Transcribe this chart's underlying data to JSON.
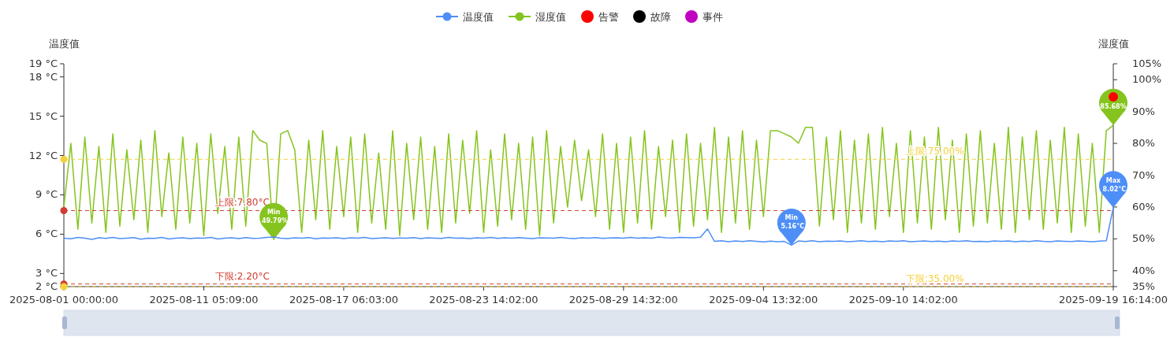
{
  "chart_data": {
    "type": "line",
    "legend": "top",
    "ylabel": "温度值",
    "y2label": "湿度值",
    "categories": [
      "2025-08-01 00:00:00",
      null,
      null,
      null,
      null,
      null,
      null,
      null,
      null,
      null,
      null,
      null,
      null,
      null,
      null,
      null,
      null,
      null,
      null,
      null,
      "2025-08-11 05:09:00",
      null,
      null,
      null,
      null,
      null,
      null,
      null,
      null,
      null,
      null,
      null,
      null,
      null,
      null,
      null,
      null,
      null,
      null,
      null,
      "2025-08-17 06:03:00",
      null,
      null,
      null,
      null,
      null,
      null,
      null,
      null,
      null,
      null,
      null,
      null,
      null,
      null,
      null,
      null,
      null,
      null,
      null,
      "2025-08-23 14:02:00",
      null,
      null,
      null,
      null,
      null,
      null,
      null,
      null,
      null,
      null,
      null,
      null,
      null,
      null,
      null,
      null,
      null,
      null,
      null,
      "2025-08-29 14:32:00",
      null,
      null,
      null,
      null,
      null,
      null,
      null,
      null,
      null,
      null,
      null,
      null,
      null,
      null,
      null,
      null,
      null,
      null,
      null,
      "2025-09-04 13:32:00",
      null,
      null,
      null,
      null,
      null,
      null,
      null,
      null,
      null,
      null,
      null,
      null,
      null,
      null,
      null,
      null,
      null,
      null,
      null,
      "2025-09-10 14:02:00",
      null,
      null,
      null,
      null,
      null,
      null,
      null,
      null,
      null,
      null,
      null,
      null,
      null,
      null,
      null,
      null,
      null,
      null,
      null,
      null,
      null,
      null,
      null,
      null,
      null,
      null,
      null,
      null,
      null,
      "2025-09-19 16:14:00"
    ],
    "ylim": [
      2,
      19
    ],
    "yticks": [
      {
        "value": 2,
        "label": "2 °C"
      },
      {
        "value": 3,
        "label": "3 °C"
      },
      {
        "value": 6,
        "label": "6 °C"
      },
      {
        "value": 9,
        "label": "9 °C"
      },
      {
        "value": 12,
        "label": "12 °C"
      },
      {
        "value": 15,
        "label": "15 °C"
      },
      {
        "value": 18,
        "label": "18 °C"
      },
      {
        "value": 19,
        "label": "19 °C"
      }
    ],
    "y2lim": [
      35,
      105
    ],
    "y2ticks": [
      {
        "value": 35,
        "label": "35%"
      },
      {
        "value": 40,
        "label": "40%"
      },
      {
        "value": 50,
        "label": "50%"
      },
      {
        "value": 60,
        "label": "60%"
      },
      {
        "value": 70,
        "label": "70%"
      },
      {
        "value": 80,
        "label": "80%"
      },
      {
        "value": 90,
        "label": "90%"
      },
      {
        "value": 100,
        "label": "100%"
      },
      {
        "value": 105,
        "label": "105%"
      }
    ],
    "series": [
      {
        "name": "温度值",
        "color": "#4e8ef7",
        "values": [
          5.7,
          5.65,
          5.75,
          5.7,
          5.6,
          5.72,
          5.68,
          5.75,
          5.66,
          5.7,
          5.74,
          5.62,
          5.7,
          5.68,
          5.76,
          5.64,
          5.7,
          5.73,
          5.66,
          5.71,
          5.69,
          5.75,
          5.63,
          5.7,
          5.72,
          5.67,
          5.74,
          5.68,
          5.7,
          5.76,
          5.78,
          5.7,
          5.66,
          5.72,
          5.69,
          5.74,
          5.65,
          5.71,
          5.7,
          5.73,
          5.67,
          5.72,
          5.7,
          5.75,
          5.66,
          5.7,
          5.73,
          5.68,
          5.71,
          5.69,
          5.74,
          5.66,
          5.72,
          5.7,
          5.68,
          5.75,
          5.69,
          5.71,
          5.67,
          5.73,
          5.7,
          5.76,
          5.68,
          5.72,
          5.69,
          5.74,
          5.7,
          5.66,
          5.73,
          5.71,
          5.69,
          5.75,
          5.7,
          5.67,
          5.72,
          5.7,
          5.74,
          5.68,
          5.71,
          5.73,
          5.7,
          5.76,
          5.69,
          5.72,
          5.7,
          5.78,
          5.73,
          5.71,
          5.75,
          5.74,
          5.72,
          5.77,
          6.4,
          5.45,
          5.5,
          5.42,
          5.48,
          5.44,
          5.5,
          5.46,
          5.41,
          5.47,
          5.43,
          5.45,
          5.16,
          5.48,
          5.44,
          5.5,
          5.42,
          5.47,
          5.45,
          5.49,
          5.43,
          5.46,
          5.5,
          5.44,
          5.47,
          5.42,
          5.48,
          5.45,
          5.5,
          5.43,
          5.46,
          5.49,
          5.44,
          5.47,
          5.42,
          5.48,
          5.45,
          5.5,
          5.44,
          5.46,
          5.43,
          5.49,
          5.45,
          5.48,
          5.42,
          5.47,
          5.44,
          5.5,
          5.45,
          5.43,
          5.48,
          5.46,
          5.44,
          5.49,
          5.45,
          5.42,
          5.47,
          5.5,
          8.02
        ]
      },
      {
        "name": "湿度值",
        "color": "#85c41e",
        "axis": "y2",
        "values": [
          60,
          80,
          53,
          82,
          55,
          79,
          52,
          83,
          54,
          78,
          56,
          81,
          52,
          84,
          57,
          77,
          53,
          82,
          55,
          80,
          51,
          83,
          58,
          79,
          53,
          82,
          54,
          84,
          81,
          80,
          49.79,
          83,
          84,
          78,
          52,
          81,
          56,
          84,
          53,
          79,
          57,
          82,
          52,
          83,
          55,
          77,
          53,
          84,
          51,
          80,
          56,
          82,
          53,
          79,
          52,
          83,
          55,
          81,
          58,
          84,
          52,
          78,
          54,
          83,
          56,
          80,
          53,
          82,
          51,
          84,
          55,
          79,
          60,
          81,
          62,
          78,
          57,
          83,
          53,
          80,
          52,
          82,
          55,
          84,
          53,
          79,
          57,
          81,
          52,
          83,
          54,
          80,
          56,
          85,
          52,
          82,
          55,
          84,
          53,
          81,
          57,
          84,
          84,
          83,
          82,
          80,
          85,
          85,
          54,
          82,
          56,
          84,
          52,
          81,
          55,
          83,
          53,
          85,
          57,
          80,
          52,
          84,
          55,
          82,
          53,
          85,
          56,
          81,
          52,
          83,
          54,
          84,
          55,
          80,
          53,
          85,
          52,
          82,
          56,
          84,
          53,
          81,
          55,
          85,
          52,
          83,
          54,
          80,
          52,
          84,
          85.68
        ]
      },
      {
        "name": "告警",
        "type": "scatter",
        "marker": "circle",
        "color": "#ff0000",
        "axis": "y2",
        "values": [
          null,
          null,
          null,
          null,
          null,
          null,
          null,
          null,
          null,
          null,
          null,
          null,
          null,
          null,
          null,
          null,
          null,
          null,
          null,
          null,
          null,
          null,
          null,
          null,
          null,
          null,
          null,
          null,
          null,
          null,
          null,
          null,
          null,
          null,
          null,
          null,
          null,
          null,
          null,
          null,
          null,
          null,
          null,
          null,
          null,
          null,
          null,
          null,
          null,
          null,
          null,
          null,
          null,
          null,
          null,
          null,
          null,
          null,
          null,
          null,
          null,
          null,
          null,
          null,
          null,
          null,
          null,
          null,
          null,
          null,
          null,
          null,
          null,
          null,
          null,
          null,
          null,
          null,
          null,
          null,
          null,
          null,
          null,
          null,
          null,
          null,
          null,
          null,
          null,
          null,
          null,
          null,
          null,
          null,
          null,
          null,
          null,
          null,
          null,
          null,
          null,
          null,
          null,
          null,
          null,
          null,
          null,
          null,
          null,
          null,
          null,
          null,
          null,
          null,
          null,
          null,
          null,
          null,
          null,
          null,
          null,
          null,
          null,
          null,
          null,
          null,
          null,
          null,
          null,
          null,
          null,
          null,
          null,
          null,
          null,
          null,
          null,
          null,
          null,
          null,
          null,
          null,
          null,
          null,
          null,
          null,
          null,
          null,
          null,
          null,
          94.6
        ]
      },
      {
        "name": "故障",
        "type": "scatter",
        "marker": "circle",
        "color": "#000000",
        "axis": "y2",
        "values": [
          null,
          null,
          null,
          null,
          null,
          null,
          null,
          null,
          null,
          null,
          null,
          null,
          null,
          null,
          null,
          null,
          null,
          null,
          null,
          null,
          null,
          null,
          null,
          null,
          null,
          null,
          null,
          null,
          null,
          null,
          null,
          null,
          null,
          null,
          null,
          null,
          null,
          null,
          null,
          null,
          null,
          null,
          null,
          null,
          null,
          null,
          null,
          null,
          null,
          null,
          null,
          null,
          null,
          null,
          null,
          null,
          null,
          null,
          null,
          null,
          null,
          null,
          null,
          null,
          null,
          null,
          null,
          null,
          null,
          null,
          null,
          null,
          null,
          null,
          null,
          null,
          null,
          null,
          null,
          null,
          null,
          null,
          null,
          null,
          null,
          null,
          null,
          null,
          null,
          null,
          null,
          null,
          null,
          null,
          null,
          null,
          null,
          null,
          null,
          null,
          null,
          null,
          null,
          null,
          null,
          null,
          null,
          null,
          null,
          null,
          null,
          null,
          null,
          null,
          null,
          null,
          null,
          null,
          null,
          null,
          null,
          null,
          null,
          null,
          null,
          null,
          null,
          null,
          null,
          null,
          null,
          null,
          null,
          null,
          null,
          null,
          null,
          null,
          null,
          null,
          null,
          null,
          null,
          null,
          null,
          null,
          null,
          null,
          null,
          null,
          null
        ]
      },
      {
        "name": "事件",
        "type": "scatter",
        "marker": "circle",
        "color": "#c000c0",
        "axis": "y2",
        "values": [
          null,
          null,
          null,
          null,
          null,
          null,
          null,
          null,
          null,
          null,
          null,
          null,
          null,
          null,
          null,
          null,
          null,
          null,
          null,
          null,
          null,
          null,
          null,
          null,
          null,
          null,
          null,
          null,
          null,
          null,
          null,
          null,
          null,
          null,
          null,
          null,
          null,
          null,
          null,
          null,
          null,
          null,
          null,
          null,
          null,
          null,
          null,
          null,
          null,
          null,
          null,
          null,
          null,
          null,
          null,
          null,
          null,
          null,
          null,
          null,
          null,
          null,
          null,
          null,
          null,
          null,
          null,
          null,
          null,
          null,
          null,
          null,
          null,
          null,
          null,
          null,
          null,
          null,
          null,
          null,
          null,
          null,
          null,
          null,
          null,
          null,
          null,
          null,
          null,
          null,
          null,
          null,
          null,
          null,
          null,
          null,
          null,
          null,
          null,
          null,
          null,
          null,
          null,
          null,
          null,
          null,
          null,
          null,
          null,
          null,
          null,
          null,
          null,
          null,
          null,
          null,
          null,
          null,
          null,
          null,
          null,
          null,
          null,
          null,
          null,
          null,
          null,
          null,
          null,
          null,
          null,
          null,
          null,
          null,
          null,
          null,
          null,
          null,
          null,
          null,
          null,
          null,
          null,
          null,
          null,
          null,
          null,
          null,
          null,
          null,
          null
        ]
      }
    ],
    "ref_lines": [
      {
        "axis": "y",
        "value": 7.8,
        "label": "上限:7.80°C",
        "color": "#d13b30",
        "line_style": "dashed"
      },
      {
        "axis": "y",
        "value": 2.2,
        "label": "下限:2.20°C",
        "color": "#d13b30",
        "line_style": "dashed"
      },
      {
        "axis": "y2",
        "value": 75,
        "label": "上限:75.00%",
        "color": "#f5d03a",
        "line_style": "dashed"
      },
      {
        "axis": "y2",
        "value": 35,
        "label": "下限:35.00%",
        "color": "#f5d03a",
        "line_style": "dashed"
      }
    ],
    "annotations": [
      "Min 49.79%",
      "Min 5.16°C",
      "Max 8.02°C",
      "85.68%"
    ]
  }
}
